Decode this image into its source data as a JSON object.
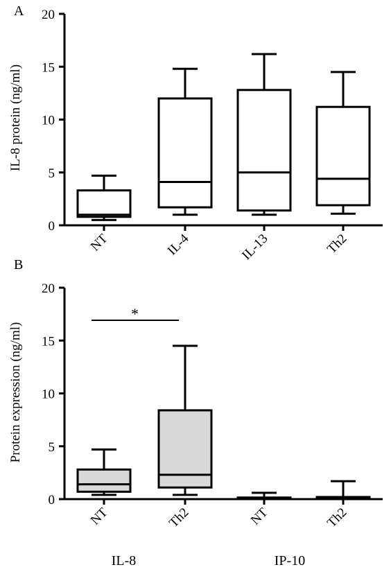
{
  "chart_data": [
    {
      "panel": "A",
      "type": "box",
      "xlabel": "",
      "ylabel": "IL-8 protein (ng/ml)",
      "ylim": [
        0,
        20
      ],
      "yticks": [
        0,
        5,
        10,
        15,
        20
      ],
      "grid": false,
      "categories": [
        "NT",
        "IL-4",
        "IL-13",
        "Th2"
      ],
      "boxes": [
        {
          "min": 0.5,
          "q1": 0.8,
          "median": 1.0,
          "q3": 3.3,
          "max": 4.7
        },
        {
          "min": 1.0,
          "q1": 1.7,
          "median": 4.1,
          "q3": 12.0,
          "max": 14.8
        },
        {
          "min": 1.0,
          "q1": 1.4,
          "median": 5.0,
          "q3": 12.8,
          "max": 16.2
        },
        {
          "min": 1.1,
          "q1": 1.9,
          "median": 4.4,
          "q3": 11.2,
          "max": 14.5
        }
      ],
      "fill": "#ffffff"
    },
    {
      "panel": "B",
      "type": "box",
      "xlabel": "",
      "ylabel": "Protein expression (ng/ml)",
      "ylim": [
        0,
        20
      ],
      "yticks": [
        0,
        5,
        10,
        15,
        20
      ],
      "grid": false,
      "categories": [
        "NT",
        "Th2",
        "NT",
        "Th2"
      ],
      "groups": [
        "IL-8",
        "IP-10"
      ],
      "boxes": [
        {
          "min": 0.4,
          "q1": 0.7,
          "median": 1.4,
          "q3": 2.8,
          "max": 4.7
        },
        {
          "min": 0.4,
          "q1": 1.1,
          "median": 2.3,
          "q3": 8.4,
          "max": 14.5
        },
        {
          "min": 0.0,
          "q1": 0.05,
          "median": 0.1,
          "q3": 0.15,
          "max": 0.6
        },
        {
          "min": 0.0,
          "q1": 0.05,
          "median": 0.1,
          "q3": 0.2,
          "max": 1.7
        }
      ],
      "significance": {
        "from": 0,
        "to": 1,
        "label": "*"
      },
      "fill": "#d9d9d9"
    }
  ]
}
